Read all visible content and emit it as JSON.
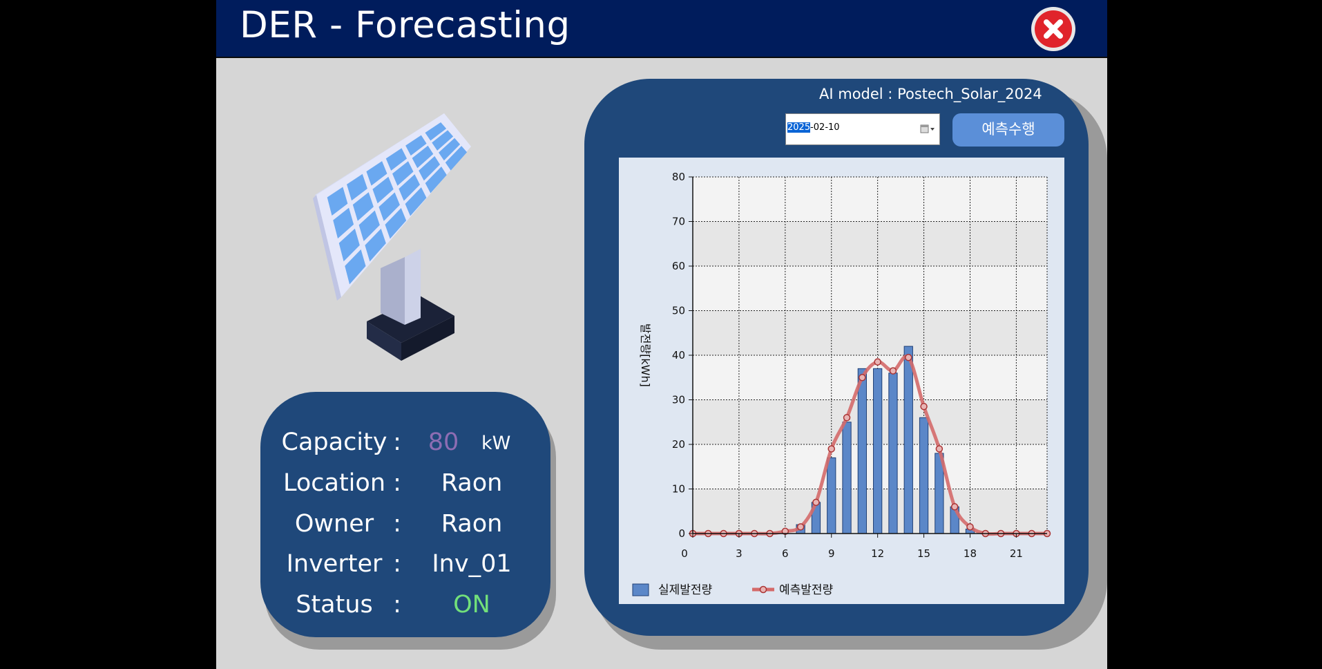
{
  "window": {
    "title": "DER - Forecasting"
  },
  "info": {
    "capacity_label": "Capacity",
    "capacity_value": "80",
    "capacity_unit": "kW",
    "location_label": "Location",
    "location_value": "Raon",
    "owner_label": "Owner",
    "owner_value": "Raon",
    "inverter_label": "Inverter",
    "inverter_value": "Inv_01",
    "status_label": "Status",
    "status_value": "ON",
    "colon": ":"
  },
  "controls": {
    "ai_model_label": "AI model :",
    "ai_model_value": "Postech_Solar_2024",
    "date_year": "2025",
    "date_rest": "-02-10",
    "predict_button": "예측수행"
  },
  "icons": {
    "close": "close-circle-icon",
    "calendar": "calendar-dropdown-icon",
    "solar": "solar-panel-icon"
  },
  "colors": {
    "bar": "#5b87c8",
    "line": "#d46a6a",
    "status_on": "#72e07a",
    "capacity": "#8d6db3"
  },
  "chart_data": {
    "type": "bar",
    "ylabel": "발전량[kWh]",
    "xlabel": "",
    "xlim": [
      0,
      23
    ],
    "ylim": [
      0,
      80
    ],
    "x_ticks": [
      0,
      3,
      6,
      9,
      12,
      15,
      18,
      21
    ],
    "y_ticks": [
      0,
      10,
      20,
      30,
      40,
      50,
      60,
      70,
      80
    ],
    "grid": true,
    "legend_position": "bottom-left",
    "x": [
      0,
      1,
      2,
      3,
      4,
      5,
      6,
      7,
      8,
      9,
      10,
      11,
      12,
      13,
      14,
      15,
      16,
      17,
      18,
      19,
      20,
      21,
      22,
      23
    ],
    "series": [
      {
        "name": "실제발전량",
        "kind": "bar",
        "values": [
          0,
          0,
          0,
          0,
          0,
          0,
          0,
          2,
          7,
          17,
          25,
          37,
          37,
          36,
          42,
          26,
          18,
          6,
          1,
          0,
          0,
          0,
          0,
          0
        ]
      },
      {
        "name": "예측발전량",
        "kind": "line",
        "values": [
          0,
          0,
          0,
          0,
          0,
          0,
          0.5,
          1.5,
          7,
          19,
          26,
          35,
          38.5,
          36.5,
          39.5,
          28.5,
          19,
          6,
          1.5,
          0,
          0,
          0,
          0,
          0
        ]
      }
    ]
  }
}
